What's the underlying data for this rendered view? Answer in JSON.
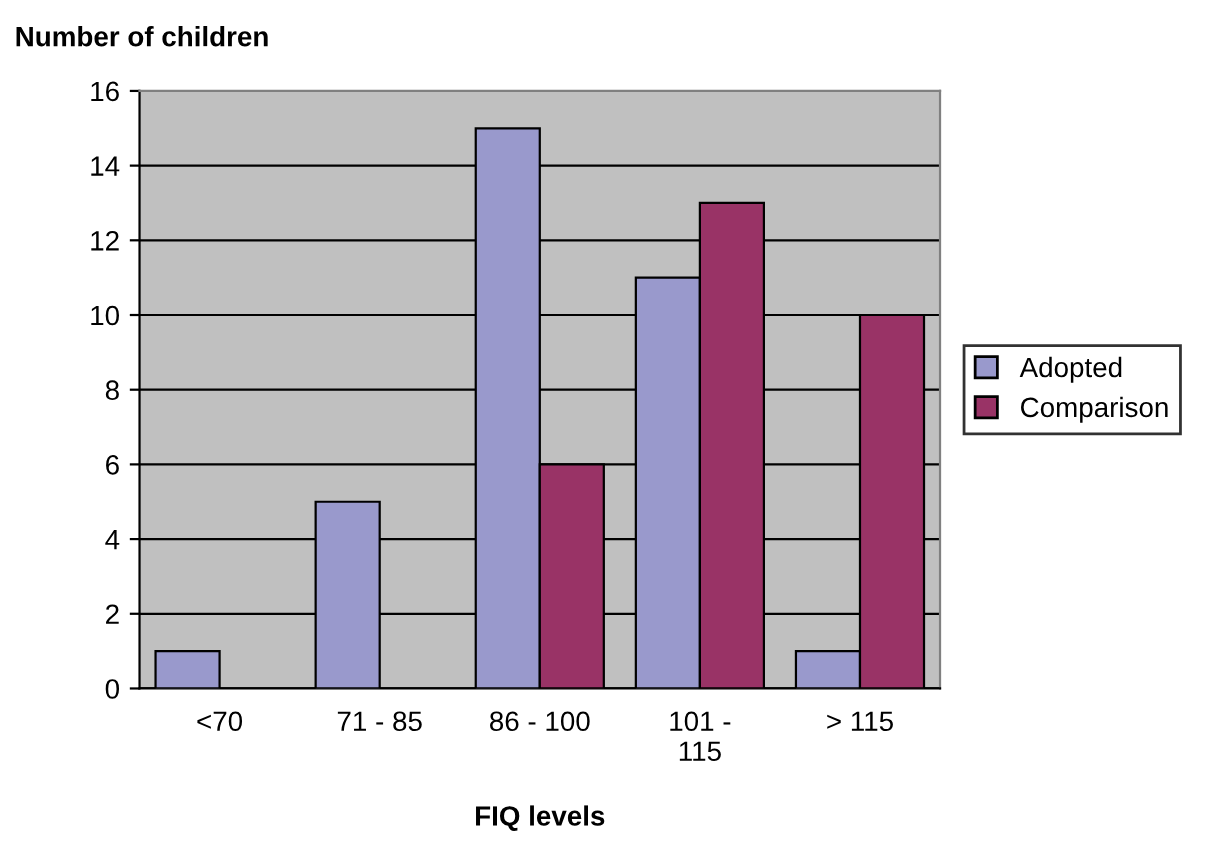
{
  "chart_data": {
    "type": "bar",
    "ylabel": "Number of children",
    "xlabel": "FIQ levels",
    "categories": [
      "<70",
      "71 - 85",
      "86 - 100",
      "101 -\n115",
      "> 115"
    ],
    "series": [
      {
        "name": "Adopted",
        "color": "#9999cc",
        "values": [
          1,
          5,
          15,
          11,
          1
        ]
      },
      {
        "name": "Comparison",
        "color": "#993366",
        "values": [
          null,
          null,
          6,
          13,
          10
        ]
      }
    ],
    "ylim": [
      0,
      16
    ],
    "yticks": [
      0,
      2,
      4,
      6,
      8,
      10,
      12,
      14,
      16
    ],
    "grid": "y",
    "legend": "right"
  }
}
